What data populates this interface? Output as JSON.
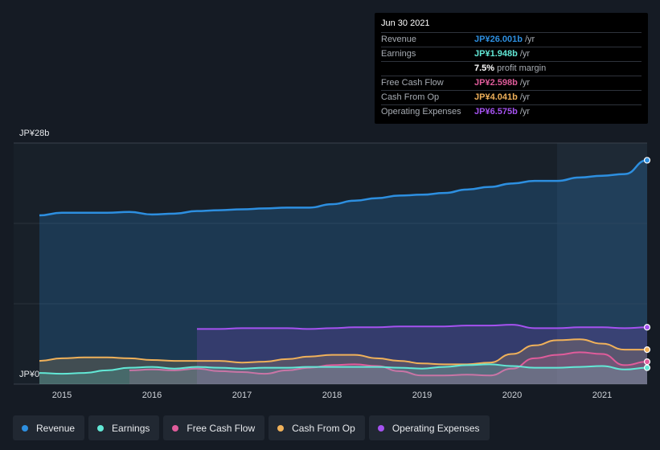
{
  "tooltip": {
    "date": "Jun 30 2021",
    "rows": [
      {
        "label": "Revenue",
        "value": "JP¥26.001b",
        "unit": "/yr",
        "color": "#2d8fe0"
      },
      {
        "label": "Earnings",
        "value": "JP¥1.948b",
        "unit": "/yr",
        "color": "#62e8d6"
      },
      {
        "label": "",
        "value": "7.5%",
        "unit": "profit margin",
        "color": "#ffffff"
      },
      {
        "label": "Free Cash Flow",
        "value": "JP¥2.598b",
        "unit": "/yr",
        "color": "#e05c9b"
      },
      {
        "label": "Cash From Op",
        "value": "JP¥4.041b",
        "unit": "/yr",
        "color": "#f0b15a"
      },
      {
        "label": "Operating Expenses",
        "value": "JP¥6.575b",
        "unit": "/yr",
        "color": "#a552f0"
      }
    ]
  },
  "chart_data": {
    "type": "area",
    "title": "",
    "xlabel": "",
    "ylabel": "",
    "ylim": [
      0,
      28
    ],
    "y_tick_labels": [
      "JP¥28b",
      "JP¥0"
    ],
    "x_ticks": [
      2015,
      2016,
      2017,
      2018,
      2019,
      2020,
      2021
    ],
    "x_tick_labels": [
      "2015",
      "2016",
      "2017",
      "2018",
      "2019",
      "2020",
      "2021"
    ],
    "x_range": [
      2014.55,
      2021.5
    ],
    "highlight_from": 2020.5,
    "series": [
      {
        "name": "Revenue",
        "color": "#2d8fe0",
        "x": [
          2014.75,
          2015.0,
          2015.25,
          2015.5,
          2015.75,
          2016.0,
          2016.25,
          2016.5,
          2016.75,
          2017.0,
          2017.25,
          2017.5,
          2017.75,
          2018.0,
          2018.25,
          2018.5,
          2018.75,
          2019.0,
          2019.25,
          2019.5,
          2019.75,
          2020.0,
          2020.25,
          2020.5,
          2020.75,
          2021.0,
          2021.25,
          2021.5
        ],
        "values": [
          19.6,
          19.9,
          19.9,
          19.9,
          20.0,
          19.7,
          19.8,
          20.1,
          20.2,
          20.3,
          20.4,
          20.5,
          20.5,
          20.9,
          21.3,
          21.6,
          21.9,
          22.0,
          22.2,
          22.6,
          22.9,
          23.3,
          23.6,
          23.6,
          24.0,
          24.2,
          24.4,
          26.0
        ]
      },
      {
        "name": "Earnings",
        "color": "#62e8d6",
        "x": [
          2014.75,
          2015.0,
          2015.25,
          2015.5,
          2015.75,
          2016.0,
          2016.25,
          2016.5,
          2016.75,
          2017.0,
          2017.25,
          2017.5,
          2017.75,
          2018.0,
          2018.25,
          2018.5,
          2018.75,
          2019.0,
          2019.25,
          2019.5,
          2019.75,
          2020.0,
          2020.25,
          2020.5,
          2020.75,
          2021.0,
          2021.25,
          2021.5
        ],
        "values": [
          1.3,
          1.2,
          1.3,
          1.6,
          1.9,
          2.0,
          1.8,
          2.0,
          1.9,
          1.8,
          1.9,
          1.9,
          2.0,
          2.0,
          2.0,
          2.0,
          1.9,
          1.8,
          2.0,
          2.2,
          2.3,
          2.1,
          1.9,
          1.9,
          2.0,
          2.1,
          1.7,
          1.9
        ]
      },
      {
        "name": "Free Cash Flow",
        "color": "#e05c9b",
        "x": [
          2015.75,
          2016.0,
          2016.25,
          2016.5,
          2016.75,
          2017.0,
          2017.25,
          2017.5,
          2017.75,
          2018.0,
          2018.25,
          2018.5,
          2018.75,
          2019.0,
          2019.25,
          2019.5,
          2019.75,
          2020.0,
          2020.25,
          2020.5,
          2020.75,
          2021.0,
          2021.25,
          2021.5
        ],
        "values": [
          1.6,
          1.7,
          1.6,
          1.8,
          1.5,
          1.4,
          1.2,
          1.6,
          1.9,
          2.2,
          2.3,
          2.1,
          1.5,
          1.0,
          1.0,
          1.1,
          1.0,
          1.8,
          3.0,
          3.4,
          3.7,
          3.5,
          2.2,
          2.6
        ]
      },
      {
        "name": "Cash From Op",
        "color": "#f0b15a",
        "x": [
          2014.75,
          2015.0,
          2015.25,
          2015.5,
          2015.75,
          2016.0,
          2016.25,
          2016.5,
          2016.75,
          2017.0,
          2017.25,
          2017.5,
          2017.75,
          2018.0,
          2018.25,
          2018.5,
          2018.75,
          2019.0,
          2019.25,
          2019.5,
          2019.75,
          2020.0,
          2020.25,
          2020.5,
          2020.75,
          2021.0,
          2021.25,
          2021.5
        ],
        "values": [
          2.7,
          3.0,
          3.1,
          3.1,
          3.0,
          2.8,
          2.7,
          2.7,
          2.7,
          2.5,
          2.6,
          2.9,
          3.2,
          3.4,
          3.4,
          3.0,
          2.7,
          2.4,
          2.3,
          2.3,
          2.5,
          3.5,
          4.5,
          5.1,
          5.2,
          4.7,
          4.0,
          4.0
        ]
      },
      {
        "name": "Operating Expenses",
        "color": "#a552f0",
        "x": [
          2016.5,
          2016.75,
          2017.0,
          2017.25,
          2017.5,
          2017.75,
          2018.0,
          2018.25,
          2018.5,
          2018.75,
          2019.0,
          2019.25,
          2019.5,
          2019.75,
          2020.0,
          2020.25,
          2020.5,
          2020.75,
          2021.0,
          2021.25,
          2021.5
        ],
        "values": [
          6.4,
          6.4,
          6.5,
          6.5,
          6.5,
          6.4,
          6.5,
          6.6,
          6.6,
          6.7,
          6.7,
          6.7,
          6.8,
          6.8,
          6.9,
          6.5,
          6.5,
          6.6,
          6.6,
          6.5,
          6.6
        ]
      }
    ]
  },
  "legend": [
    {
      "label": "Revenue",
      "color": "#2d8fe0"
    },
    {
      "label": "Earnings",
      "color": "#62e8d6"
    },
    {
      "label": "Free Cash Flow",
      "color": "#e05c9b"
    },
    {
      "label": "Cash From Op",
      "color": "#f0b15a"
    },
    {
      "label": "Operating Expenses",
      "color": "#a552f0"
    }
  ]
}
